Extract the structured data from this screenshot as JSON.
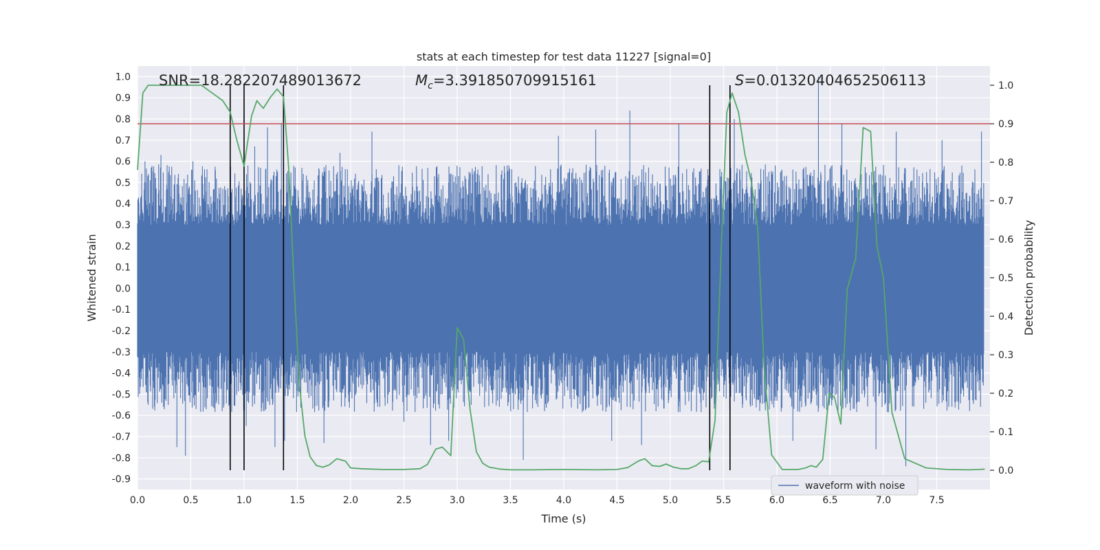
{
  "chart_data": {
    "type": "line",
    "title": "stats at each timestep for test data 11227 [signal=0]",
    "xlabel": "Time (s)",
    "ylabel_left": "Whitened strain",
    "ylabel_right": "Detection probability",
    "xlim": [
      0,
      8
    ],
    "ylim_left": [
      -0.95,
      1.05
    ],
    "ylim_right": [
      -0.05,
      1.05
    ],
    "x_ticks": [
      "0.0",
      "0.5",
      "1.0",
      "1.5",
      "2.0",
      "2.5",
      "3.0",
      "3.5",
      "4.0",
      "4.5",
      "5.0",
      "5.5",
      "6.0",
      "6.5",
      "7.0",
      "7.5"
    ],
    "y_ticks_left": [
      "1.0",
      "0.9",
      "0.8",
      "0.7",
      "0.6",
      "0.5",
      "0.4",
      "0.3",
      "0.2",
      "0.1",
      "0.0",
      "-0.1",
      "-0.2",
      "-0.3",
      "-0.4",
      "-0.5",
      "-0.6",
      "-0.7",
      "-0.8",
      "-0.9"
    ],
    "y_ticks_right": [
      "1.0",
      "0.9",
      "0.8",
      "0.7",
      "0.6",
      "0.5",
      "0.4",
      "0.3",
      "0.2",
      "0.1",
      "0.0"
    ],
    "grid": true,
    "legend_position": "lower-right",
    "annotations": {
      "snr": "SNR=18.282207489013672",
      "mc_symbol": "M",
      "mc_subscript": "c",
      "mc_value": "=3.391850709915161",
      "s_symbol": "S",
      "s_value": "=0.01320404652506113"
    },
    "threshold": {
      "axis": "right",
      "value": 0.9
    },
    "vertical_lines_x": [
      0.87,
      1.0,
      1.37,
      5.37,
      5.56
    ],
    "series": [
      {
        "name": "waveform with noise",
        "axis": "left",
        "color": "#4c72b0",
        "kind": "noise-envelope",
        "core_amplitude": 0.3,
        "envelope_amplitude": 0.45,
        "spikes": [
          {
            "x": 0.07,
            "y": 0.6
          },
          {
            "x": 0.1,
            "y": -0.55
          },
          {
            "x": 0.22,
            "y": 0.63
          },
          {
            "x": 0.37,
            "y": -0.75
          },
          {
            "x": 0.45,
            "y": -0.79
          },
          {
            "x": 0.52,
            "y": 0.6
          },
          {
            "x": 0.87,
            "y": -0.6
          },
          {
            "x": 1.0,
            "y": 0.6
          },
          {
            "x": 1.02,
            "y": -0.65
          },
          {
            "x": 1.1,
            "y": 0.67
          },
          {
            "x": 1.22,
            "y": 0.76
          },
          {
            "x": 1.29,
            "y": -0.75
          },
          {
            "x": 1.35,
            "y": 0.78
          },
          {
            "x": 1.38,
            "y": -0.72
          },
          {
            "x": 1.75,
            "y": -0.73
          },
          {
            "x": 1.9,
            "y": 0.64
          },
          {
            "x": 2.2,
            "y": 0.74
          },
          {
            "x": 2.5,
            "y": -0.63
          },
          {
            "x": 2.75,
            "y": -0.74
          },
          {
            "x": 2.92,
            "y": -0.72
          },
          {
            "x": 3.62,
            "y": -0.81
          },
          {
            "x": 3.95,
            "y": 0.72
          },
          {
            "x": 4.3,
            "y": 0.75
          },
          {
            "x": 4.45,
            "y": -0.72
          },
          {
            "x": 4.62,
            "y": 0.84
          },
          {
            "x": 4.73,
            "y": -0.74
          },
          {
            "x": 5.08,
            "y": 0.78
          },
          {
            "x": 5.6,
            "y": 0.8
          },
          {
            "x": 6.15,
            "y": -0.72
          },
          {
            "x": 6.39,
            "y": 1.0
          },
          {
            "x": 6.61,
            "y": 0.78
          },
          {
            "x": 6.93,
            "y": -0.76
          },
          {
            "x": 7.12,
            "y": 0.74
          },
          {
            "x": 7.21,
            "y": -0.84
          },
          {
            "x": 7.55,
            "y": 0.7
          },
          {
            "x": 7.92,
            "y": 0.74
          }
        ]
      },
      {
        "name": "",
        "axis": "right",
        "color": "#55a868",
        "x": [
          0.0,
          0.05,
          0.1,
          0.2,
          0.3,
          0.4,
          0.5,
          0.6,
          0.7,
          0.8,
          0.87,
          0.93,
          1.0,
          1.07,
          1.12,
          1.18,
          1.25,
          1.31,
          1.37,
          1.42,
          1.47,
          1.52,
          1.57,
          1.62,
          1.68,
          1.74,
          1.8,
          1.87,
          1.95,
          2.0,
          2.1,
          2.3,
          2.5,
          2.65,
          2.72,
          2.8,
          2.86,
          2.94,
          3.0,
          3.06,
          3.12,
          3.18,
          3.24,
          3.3,
          3.4,
          3.5,
          3.7,
          4.0,
          4.3,
          4.5,
          4.6,
          4.7,
          4.76,
          4.83,
          4.9,
          4.96,
          5.03,
          5.1,
          5.17,
          5.24,
          5.3,
          5.36,
          5.42,
          5.48,
          5.53,
          5.58,
          5.64,
          5.7,
          5.76,
          5.82,
          5.88,
          5.95,
          6.05,
          6.15,
          6.2,
          6.27,
          6.32,
          6.37,
          6.43,
          6.49,
          6.54,
          6.6,
          6.66,
          6.74,
          6.81,
          6.88,
          6.94,
          7.0,
          7.08,
          7.2,
          7.4,
          7.6,
          7.8,
          7.9,
          7.95
        ],
        "y": [
          0.78,
          0.98,
          1.0,
          1.0,
          1.0,
          1.0,
          1.0,
          1.0,
          0.98,
          0.96,
          0.93,
          0.86,
          0.79,
          0.92,
          0.96,
          0.94,
          0.97,
          0.99,
          0.97,
          0.78,
          0.48,
          0.22,
          0.09,
          0.035,
          0.012,
          0.008,
          0.014,
          0.03,
          0.024,
          0.006,
          0.004,
          0.002,
          0.002,
          0.004,
          0.015,
          0.055,
          0.06,
          0.038,
          0.37,
          0.34,
          0.16,
          0.048,
          0.018,
          0.008,
          0.003,
          0.001,
          0.001,
          0.002,
          0.001,
          0.002,
          0.007,
          0.024,
          0.03,
          0.012,
          0.01,
          0.016,
          0.008,
          0.004,
          0.004,
          0.012,
          0.024,
          0.022,
          0.13,
          0.59,
          0.93,
          0.98,
          0.93,
          0.82,
          0.75,
          0.63,
          0.27,
          0.04,
          0.002,
          0.002,
          0.002,
          0.006,
          0.012,
          0.008,
          0.028,
          0.2,
          0.19,
          0.12,
          0.47,
          0.55,
          0.89,
          0.88,
          0.58,
          0.5,
          0.15,
          0.03,
          0.006,
          0.002,
          0.001,
          0.002,
          0.003
        ]
      }
    ]
  }
}
